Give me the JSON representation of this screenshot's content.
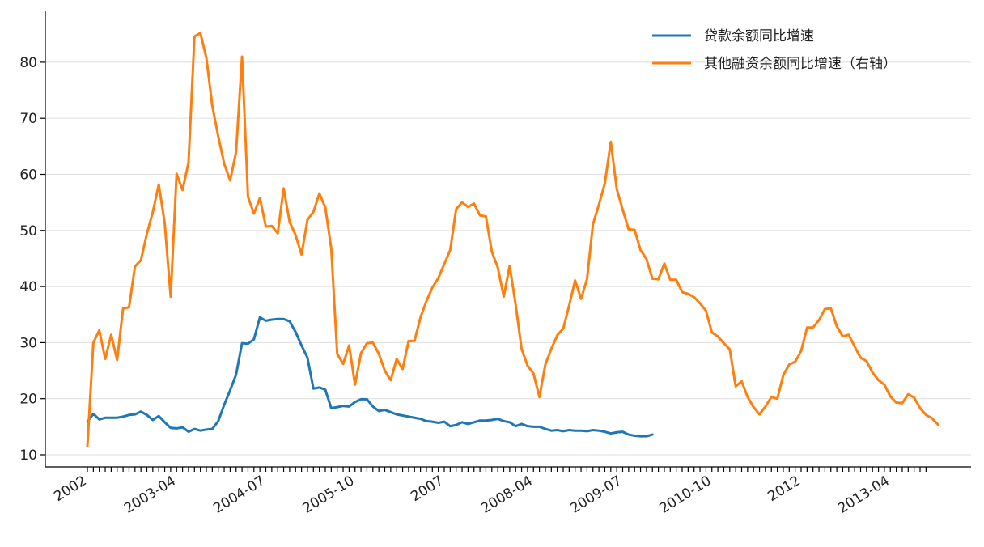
{
  "chart_data": {
    "type": "line",
    "title": "",
    "xlabel": "",
    "ylabel": "",
    "ylim": [
      8.5,
      88.5
    ],
    "y_ticks": [
      10,
      20,
      30,
      40,
      50,
      60,
      70,
      80
    ],
    "grid": "horizontal",
    "legend_position": "top-right",
    "x_start": "2002-01",
    "x_tick_labels": [
      {
        "label": "2002",
        "index": 0
      },
      {
        "label": "2003-04",
        "index": 15
      },
      {
        "label": "2004-07",
        "index": 30
      },
      {
        "label": "2005-10",
        "index": 45
      },
      {
        "label": "2007",
        "index": 60
      },
      {
        "label": "2008-04",
        "index": 75
      },
      {
        "label": "2009-07",
        "index": 90
      },
      {
        "label": "2010-10",
        "index": 105
      },
      {
        "label": "2012",
        "index": 120
      },
      {
        "label": "2013-04",
        "index": 135
      }
    ],
    "months_count": 142,
    "series": [
      {
        "name": "贷款余额同比增速",
        "color": "#1f77b4",
        "values": [
          15.9,
          17.3,
          16.3,
          16.6,
          16.6,
          16.6,
          16.8,
          17.1,
          17.2,
          17.7,
          17.1,
          16.2,
          16.9,
          15.8,
          14.8,
          14.7,
          14.9,
          14.1,
          14.6,
          14.3,
          14.5,
          14.6,
          16.0,
          18.9,
          21.5,
          24.3,
          29.9,
          29.8,
          30.6,
          34.5,
          33.9,
          34.1,
          34.2,
          34.2,
          33.8,
          31.9,
          29.5,
          27.3,
          21.8,
          22.0,
          21.6,
          18.3,
          18.5,
          18.7,
          18.6,
          19.4,
          19.9,
          19.9,
          18.6,
          17.8,
          18.0,
          17.6,
          17.2,
          17.0,
          16.8,
          16.6,
          16.4,
          16.0,
          15.9,
          15.7,
          15.9,
          15.1,
          15.3,
          15.8,
          15.5,
          15.8,
          16.1,
          16.1,
          16.2,
          16.4,
          16.0,
          15.8,
          15.1,
          15.5,
          15.1,
          15.0,
          15.0,
          14.6,
          14.3,
          14.4,
          14.2,
          14.4,
          14.3,
          14.3,
          14.2,
          14.4,
          14.3,
          14.1,
          13.8,
          14.0,
          14.1,
          13.6,
          13.4,
          13.3,
          13.3,
          13.6
        ]
      },
      {
        "name": "其他融资余额同比增速（右轴）",
        "color": "#ff7f0e",
        "values": [
          11.5,
          30.0,
          32.2,
          27.1,
          31.4,
          26.9,
          36.1,
          36.3,
          43.6,
          44.7,
          49.4,
          53.3,
          58.2,
          51.3,
          38.2,
          60.1,
          57.2,
          62.1,
          84.6,
          85.2,
          80.8,
          72.2,
          66.8,
          61.9,
          58.9,
          64.0,
          81.0,
          56.0,
          53.0,
          55.8,
          50.7,
          50.8,
          49.5,
          57.5,
          51.5,
          49.2,
          45.7,
          51.9,
          53.3,
          56.6,
          54.1,
          46.8,
          28.0,
          26.2,
          29.5,
          22.5,
          28.1,
          29.9,
          30.0,
          28.0,
          25.0,
          23.3,
          27.1,
          25.3,
          30.3,
          30.3,
          34.5,
          37.4,
          39.8,
          41.5,
          44.0,
          46.5,
          53.8,
          55.0,
          54.2,
          54.8,
          52.7,
          52.5,
          46.2,
          43.4,
          38.2,
          43.7,
          36.8,
          28.9,
          25.9,
          24.5,
          20.3,
          26.1,
          28.9,
          31.3,
          32.5,
          36.6,
          41.1,
          37.8,
          41.3,
          51.1,
          54.6,
          58.4,
          65.8,
          57.4,
          53.7,
          50.2,
          50.1,
          46.5,
          44.9,
          41.4,
          41.3,
          44.1,
          41.2,
          41.2,
          39.0,
          38.7,
          38.1,
          37.0,
          35.7,
          31.8,
          31.1,
          29.9,
          28.8,
          22.2,
          23.1,
          20.3,
          18.5,
          17.2,
          18.6,
          20.3,
          20.0,
          24.2,
          26.1,
          26.6,
          28.5,
          32.7,
          32.7,
          34.0,
          36.0,
          36.1,
          32.9,
          31.1,
          31.4,
          29.3,
          27.3,
          26.7,
          24.7,
          23.3,
          22.5,
          20.4,
          19.3,
          19.2,
          20.8,
          20.2,
          18.3,
          17.1,
          16.5,
          15.4
        ]
      }
    ]
  }
}
